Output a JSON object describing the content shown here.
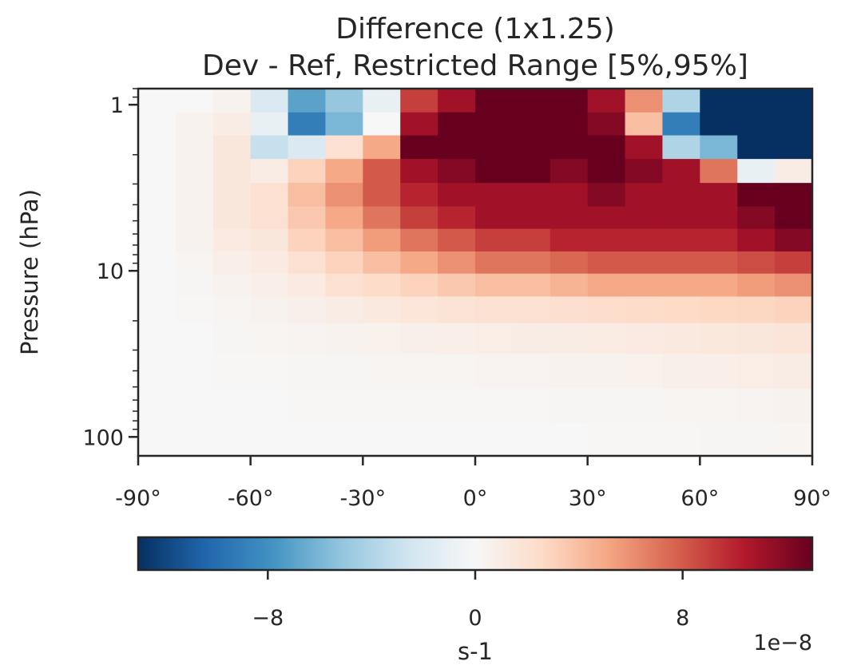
{
  "chart_data": {
    "type": "heatmap",
    "title": "Difference (1x1.25)",
    "subtitle": "Dev - Ref, Restricted Range [5%,95%]",
    "xlabel": "",
    "ylabel": "Pressure (hPa)",
    "x_scale": "linear",
    "y_scale": "log",
    "y_inverted": true,
    "xlim": [
      -90,
      90
    ],
    "ylim": [
      1.0,
      0.8,
      100,
      130
    ],
    "y_range": [
      0.8,
      130
    ],
    "x_ticks": [
      -90,
      -60,
      -30,
      0,
      30,
      60,
      90
    ],
    "x_tick_labels": [
      "-90°",
      "-60°",
      "-30°",
      "0°",
      "30°",
      "60°",
      "90°"
    ],
    "y_ticks": [
      1,
      10,
      100
    ],
    "y_tick_labels": [
      "1",
      "10",
      "100"
    ],
    "grid": false,
    "colorbar": {
      "colormap": "RdBu_r",
      "label": "s-1",
      "offset_label": "1e−8",
      "vmin": -13,
      "vmax": 13,
      "ticks": [
        -8,
        0,
        8
      ],
      "tick_labels": [
        "−8",
        "0",
        "8"
      ],
      "orientation": "horizontal"
    },
    "colormap_stops": [
      "#053061",
      "#2166ac",
      "#4393c3",
      "#92c5de",
      "#d1e5f0",
      "#f7f7f7",
      "#fddbc7",
      "#f4a582",
      "#d6604d",
      "#b2182b",
      "#67001f"
    ],
    "lat_centers": [
      -85,
      -75,
      -65,
      -55,
      -45,
      -35,
      -25,
      -15,
      -5,
      5,
      15,
      25,
      35,
      45,
      55,
      65,
      75,
      85
    ],
    "pressure_levels": [
      0.95,
      1.3,
      1.8,
      2.5,
      3.5,
      4.8,
      6.5,
      9,
      12,
      17,
      25,
      40,
      65,
      105
    ],
    "values": [
      [
        0,
        0,
        0.5,
        -2,
        -7,
        -5,
        -1,
        9,
        11,
        13,
        13,
        13,
        11,
        6,
        -4,
        -13,
        -13,
        -13
      ],
      [
        0,
        0.5,
        1,
        -1,
        -9,
        -6,
        0,
        11,
        13,
        13,
        13,
        13,
        12,
        4,
        -9,
        -13,
        -13,
        -13
      ],
      [
        0,
        0.5,
        1.5,
        -3,
        -2,
        2,
        5,
        13,
        13,
        13,
        13,
        13,
        13,
        11,
        -4,
        -6,
        -13,
        -13
      ],
      [
        0,
        0.5,
        1.5,
        1,
        3,
        5,
        8,
        11,
        12,
        13,
        13,
        12,
        13,
        12,
        11,
        7,
        -1,
        1
      ],
      [
        0,
        0.5,
        1.5,
        2,
        4,
        6,
        8,
        10,
        11,
        11,
        11,
        11,
        12,
        11,
        11,
        11,
        13,
        13
      ],
      [
        0,
        0.5,
        1.5,
        2,
        3.5,
        5,
        7,
        9,
        10,
        11,
        11,
        11,
        11,
        11,
        11,
        11,
        12,
        13
      ],
      [
        0,
        0.5,
        1.2,
        1.5,
        3,
        4,
        5.5,
        7,
        8,
        9,
        9,
        10,
        10,
        10,
        10,
        10,
        11,
        12
      ],
      [
        0,
        0.3,
        0.8,
        1.2,
        2,
        3,
        4,
        5,
        6,
        7,
        7,
        7.5,
        8,
        8,
        8,
        8,
        8.5,
        9
      ],
      [
        0,
        0.2,
        0.5,
        0.8,
        1.2,
        2,
        2.5,
        3,
        3.5,
        4,
        4,
        4.5,
        5,
        5,
        5,
        5,
        5.5,
        6
      ],
      [
        0,
        0.1,
        0.3,
        0.5,
        0.7,
        1,
        1.3,
        1.6,
        1.8,
        2,
        2,
        2.2,
        2.4,
        2.5,
        2.6,
        2.7,
        2.8,
        3
      ],
      [
        0,
        0,
        0.2,
        0.3,
        0.4,
        0.5,
        0.6,
        0.7,
        0.8,
        0.9,
        1,
        1,
        1.1,
        1.2,
        1.3,
        1.4,
        1.5,
        1.7
      ],
      [
        0,
        0,
        0.1,
        0.1,
        0.2,
        0.2,
        0.3,
        0.3,
        0.3,
        0.4,
        0.4,
        0.5,
        0.5,
        0.6,
        0.7,
        0.8,
        0.9,
        1
      ],
      [
        0,
        0,
        0,
        0,
        0.1,
        0.1,
        0.1,
        0.1,
        0.1,
        0.1,
        0.1,
        0.2,
        0.2,
        0.2,
        0.3,
        0.3,
        0.4,
        0.5
      ],
      [
        0,
        0,
        0,
        0,
        0,
        0,
        0,
        0,
        0,
        0,
        0,
        0,
        0.1,
        0.1,
        0.1,
        0.2,
        0.2,
        0.3
      ]
    ]
  }
}
